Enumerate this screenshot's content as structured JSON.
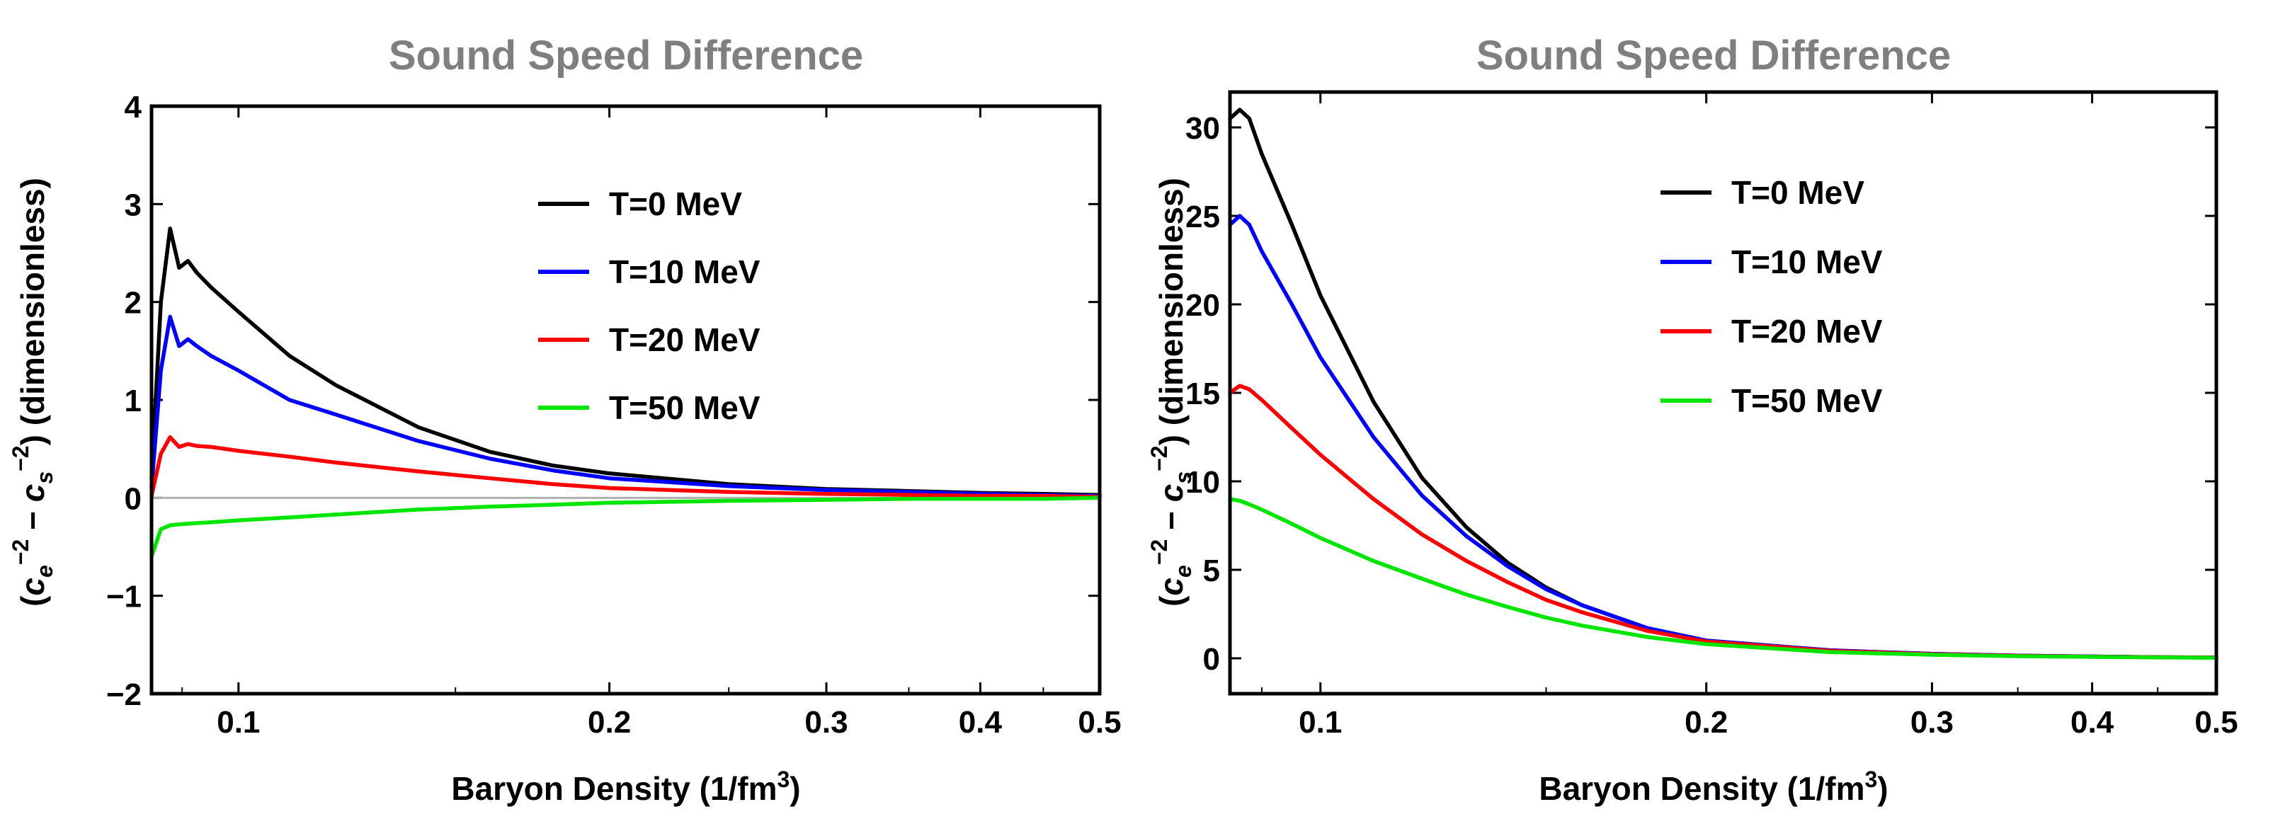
{
  "chart_data": [
    {
      "type": "line",
      "title": "Sound Speed Difference",
      "xlabel": "Baryon Density (1/fm^3)",
      "xlabel_main": "Baryon Density (1/fm",
      "xlabel_sup": "3",
      "xlabel_close": ")",
      "ylabel": "(c_e^-2 − c_s^-2) (dimensionless)",
      "ylabel_parts": {
        "open": "(",
        "c1": "c",
        "sub1": "e",
        "sup1": "−2",
        "minus": " − ",
        "c2": "c",
        "sub2": "s",
        "sup2": "−2",
        "rest": ") (dimensionless)"
      },
      "x_scale": "log",
      "xlim": [
        0.085,
        0.5
      ],
      "ylim": [
        -2,
        4
      ],
      "x_ticks": [
        0.1,
        0.2,
        0.3,
        0.4,
        0.5
      ],
      "x_tick_labels": [
        "0.1",
        "0.2",
        "0.3",
        "0.4",
        "0.5"
      ],
      "y_ticks": [
        -2,
        -1,
        0,
        1,
        2,
        3,
        4
      ],
      "y_tick_labels": [
        "−2",
        "−1",
        "0",
        "1",
        "2",
        "3",
        "4"
      ],
      "zero_line": true,
      "legend_position": "upper-right",
      "series": [
        {
          "name": "T=0 MeV",
          "color": "#000000",
          "x": [
            0.085,
            0.0865,
            0.088,
            0.0895,
            0.091,
            0.0925,
            0.095,
            0.1,
            0.11,
            0.12,
            0.14,
            0.16,
            0.18,
            0.2,
            0.25,
            0.3,
            0.35,
            0.4,
            0.45,
            0.5
          ],
          "y": [
            0.2,
            2.0,
            2.75,
            2.35,
            2.42,
            2.3,
            2.15,
            1.9,
            1.45,
            1.15,
            0.72,
            0.47,
            0.33,
            0.25,
            0.14,
            0.09,
            0.07,
            0.05,
            0.04,
            0.03
          ]
        },
        {
          "name": "T=10 MeV",
          "color": "#0000ff",
          "x": [
            0.085,
            0.0865,
            0.088,
            0.0895,
            0.091,
            0.0925,
            0.095,
            0.1,
            0.11,
            0.12,
            0.14,
            0.16,
            0.18,
            0.2,
            0.25,
            0.3,
            0.35,
            0.4,
            0.45,
            0.5
          ],
          "y": [
            0.1,
            1.3,
            1.85,
            1.55,
            1.62,
            1.55,
            1.45,
            1.3,
            1.0,
            0.85,
            0.58,
            0.4,
            0.28,
            0.2,
            0.12,
            0.08,
            0.06,
            0.04,
            0.03,
            0.02
          ]
        },
        {
          "name": "T=20 MeV",
          "color": "#ff0000",
          "x": [
            0.085,
            0.0865,
            0.088,
            0.0895,
            0.091,
            0.0925,
            0.095,
            0.1,
            0.11,
            0.12,
            0.14,
            0.16,
            0.18,
            0.2,
            0.25,
            0.3,
            0.35,
            0.4,
            0.45,
            0.5
          ],
          "y": [
            0.02,
            0.45,
            0.62,
            0.52,
            0.55,
            0.53,
            0.52,
            0.48,
            0.42,
            0.36,
            0.27,
            0.2,
            0.14,
            0.1,
            0.06,
            0.04,
            0.03,
            0.02,
            0.02,
            0.01
          ]
        },
        {
          "name": "T=50 MeV",
          "color": "#00e600",
          "x": [
            0.085,
            0.0865,
            0.088,
            0.0895,
            0.092,
            0.095,
            0.1,
            0.11,
            0.12,
            0.14,
            0.16,
            0.18,
            0.2,
            0.25,
            0.3,
            0.35,
            0.4,
            0.45,
            0.5
          ],
          "y": [
            -0.6,
            -0.32,
            -0.28,
            -0.27,
            -0.26,
            -0.25,
            -0.23,
            -0.2,
            -0.17,
            -0.12,
            -0.09,
            -0.07,
            -0.05,
            -0.03,
            -0.02,
            -0.01,
            -0.01,
            -0.01,
            0.0
          ]
        }
      ]
    },
    {
      "type": "line",
      "title": "Sound Speed Difference",
      "xlabel": "Baryon Density (1/fm^3)",
      "xlabel_main": "Baryon Density (1/fm",
      "xlabel_sup": "3",
      "xlabel_close": ")",
      "ylabel": "(c_e^-2 − c_s^-2) (dimensionless)",
      "ylabel_parts": {
        "open": "(",
        "c1": "c",
        "sub1": "e",
        "sup1": "−2",
        "minus": " − ",
        "c2": "c",
        "sub2": "s",
        "sup2": "−2",
        "rest": ") (dimensionless)"
      },
      "x_scale": "log",
      "xlim": [
        0.085,
        0.5
      ],
      "ylim": [
        -2,
        32
      ],
      "x_ticks": [
        0.1,
        0.2,
        0.3,
        0.4,
        0.5
      ],
      "x_tick_labels": [
        "0.1",
        "0.2",
        "0.3",
        "0.4",
        "0.5"
      ],
      "y_ticks": [
        0,
        5,
        10,
        15,
        20,
        25,
        30
      ],
      "y_tick_labels": [
        "0",
        "5",
        "10",
        "15",
        "20",
        "25",
        "30"
      ],
      "zero_line": false,
      "legend_position": "upper-right",
      "series": [
        {
          "name": "T=0 MeV",
          "color": "#000000",
          "x": [
            0.085,
            0.0865,
            0.088,
            0.09,
            0.095,
            0.1,
            0.11,
            0.12,
            0.13,
            0.14,
            0.15,
            0.16,
            0.18,
            0.2,
            0.25,
            0.3,
            0.35,
            0.4,
            0.45,
            0.5
          ],
          "y": [
            30.5,
            31.0,
            30.5,
            28.5,
            24.5,
            20.5,
            14.5,
            10.2,
            7.4,
            5.4,
            4.0,
            3.0,
            1.7,
            1.0,
            0.45,
            0.25,
            0.15,
            0.1,
            0.06,
            0.04
          ]
        },
        {
          "name": "T=10 MeV",
          "color": "#0000ff",
          "x": [
            0.085,
            0.0865,
            0.088,
            0.09,
            0.095,
            0.1,
            0.11,
            0.12,
            0.13,
            0.14,
            0.15,
            0.16,
            0.18,
            0.2,
            0.25,
            0.3,
            0.35,
            0.4,
            0.45,
            0.5
          ],
          "y": [
            24.5,
            25.0,
            24.5,
            23.0,
            20.0,
            17.0,
            12.5,
            9.2,
            6.9,
            5.2,
            3.9,
            3.0,
            1.7,
            1.0,
            0.45,
            0.25,
            0.15,
            0.1,
            0.06,
            0.04
          ]
        },
        {
          "name": "T=20 MeV",
          "color": "#ff0000",
          "x": [
            0.085,
            0.0865,
            0.088,
            0.09,
            0.095,
            0.1,
            0.11,
            0.12,
            0.13,
            0.14,
            0.15,
            0.16,
            0.18,
            0.2,
            0.25,
            0.3,
            0.35,
            0.4,
            0.45,
            0.5
          ],
          "y": [
            15.0,
            15.4,
            15.2,
            14.6,
            13.0,
            11.5,
            9.0,
            7.0,
            5.5,
            4.3,
            3.3,
            2.6,
            1.55,
            0.95,
            0.42,
            0.23,
            0.14,
            0.09,
            0.06,
            0.04
          ]
        },
        {
          "name": "T=50 MeV",
          "color": "#00e600",
          "x": [
            0.085,
            0.0865,
            0.088,
            0.09,
            0.095,
            0.1,
            0.11,
            0.12,
            0.13,
            0.14,
            0.15,
            0.16,
            0.18,
            0.2,
            0.25,
            0.3,
            0.35,
            0.4,
            0.45,
            0.5
          ],
          "y": [
            9.0,
            8.9,
            8.7,
            8.4,
            7.6,
            6.8,
            5.5,
            4.5,
            3.6,
            2.9,
            2.3,
            1.85,
            1.2,
            0.8,
            0.35,
            0.2,
            0.12,
            0.08,
            0.05,
            0.03
          ]
        }
      ]
    }
  ]
}
